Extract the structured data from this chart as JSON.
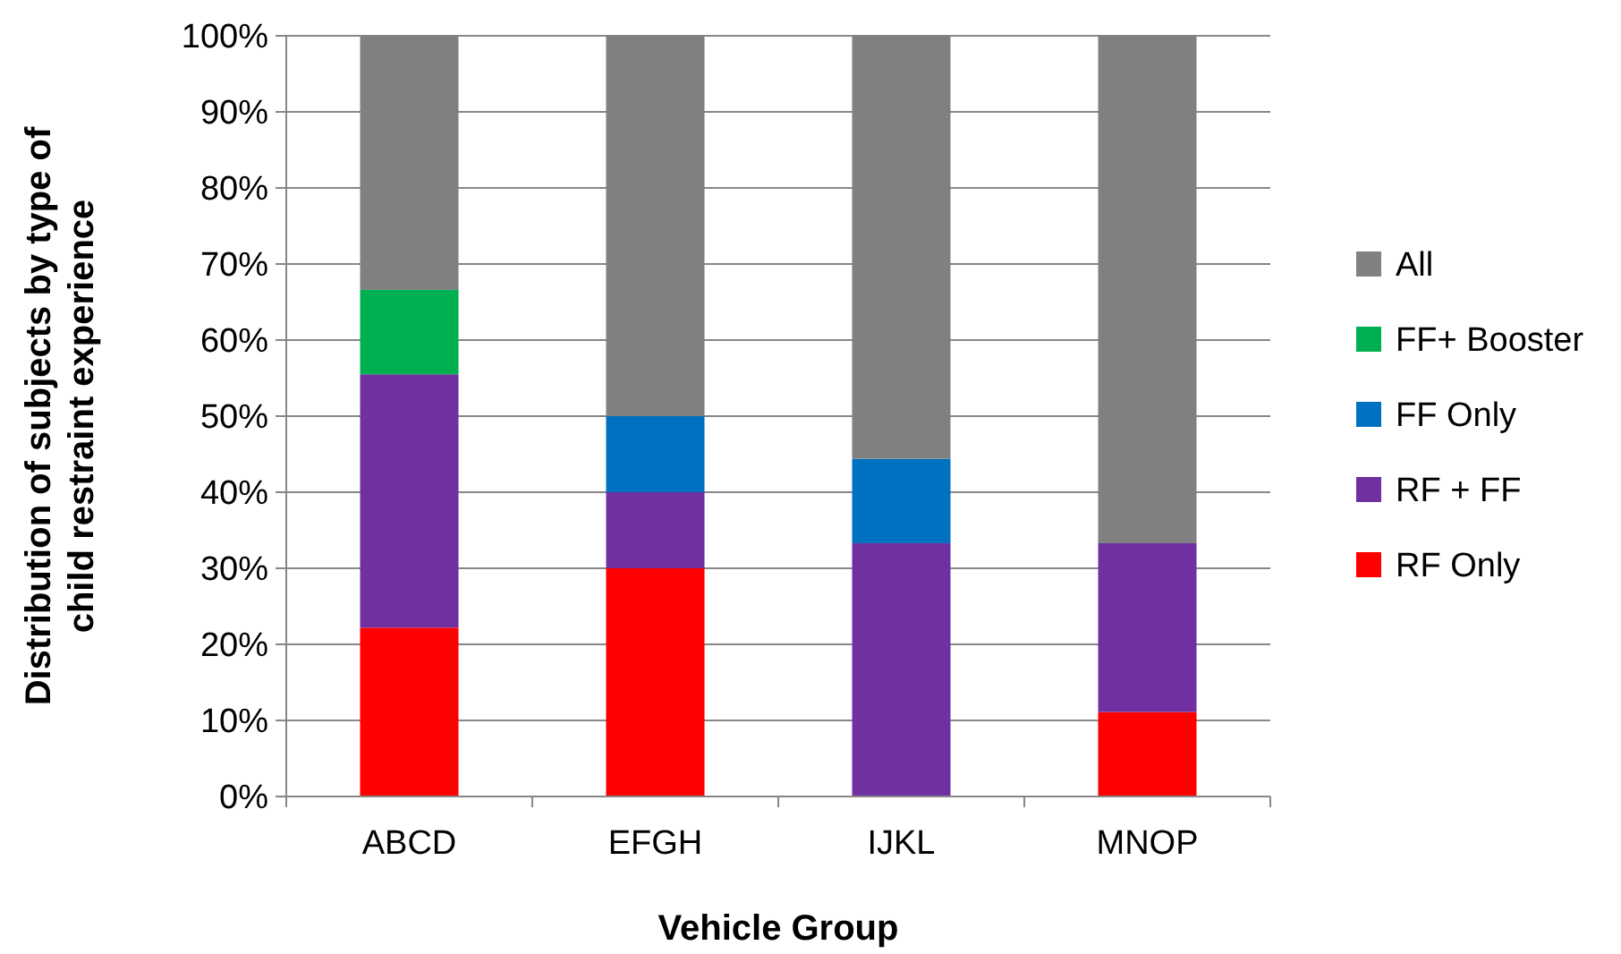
{
  "chart_data": {
    "type": "bar",
    "stacked": true,
    "xlabel": "Vehicle Group",
    "ylabel": "Distribution of subjects by type of child restraint experience",
    "categories": [
      "ABCD",
      "EFGH",
      "IJKL",
      "MNOP"
    ],
    "series": [
      {
        "name": "RF Only",
        "color": "#ff0000",
        "values": [
          22.2,
          30,
          0,
          11.1
        ]
      },
      {
        "name": "RF + FF",
        "color": "#7030a0",
        "values": [
          33.3,
          10,
          33.3,
          22.2
        ]
      },
      {
        "name": "FF Only",
        "color": "#0070c0",
        "values": [
          0,
          10,
          11.1,
          0
        ]
      },
      {
        "name": "FF+ Booster",
        "color": "#00b050",
        "values": [
          11.1,
          0,
          0,
          0
        ]
      },
      {
        "name": "All",
        "color": "#808080",
        "values": [
          33.4,
          50,
          55.6,
          66.7
        ]
      }
    ],
    "ylim": [
      0,
      100
    ],
    "yticks": [
      {
        "value": 0,
        "label": "0%"
      },
      {
        "value": 10,
        "label": "10%"
      },
      {
        "value": 20,
        "label": "20%"
      },
      {
        "value": 30,
        "label": "30%"
      },
      {
        "value": 40,
        "label": "40%"
      },
      {
        "value": 50,
        "label": "50%"
      },
      {
        "value": 60,
        "label": "60%"
      },
      {
        "value": 70,
        "label": "70%"
      },
      {
        "value": 80,
        "label": "80%"
      },
      {
        "value": 90,
        "label": "90%"
      },
      {
        "value": 100,
        "label": "100%"
      }
    ],
    "grid": "y",
    "legend": "right"
  }
}
